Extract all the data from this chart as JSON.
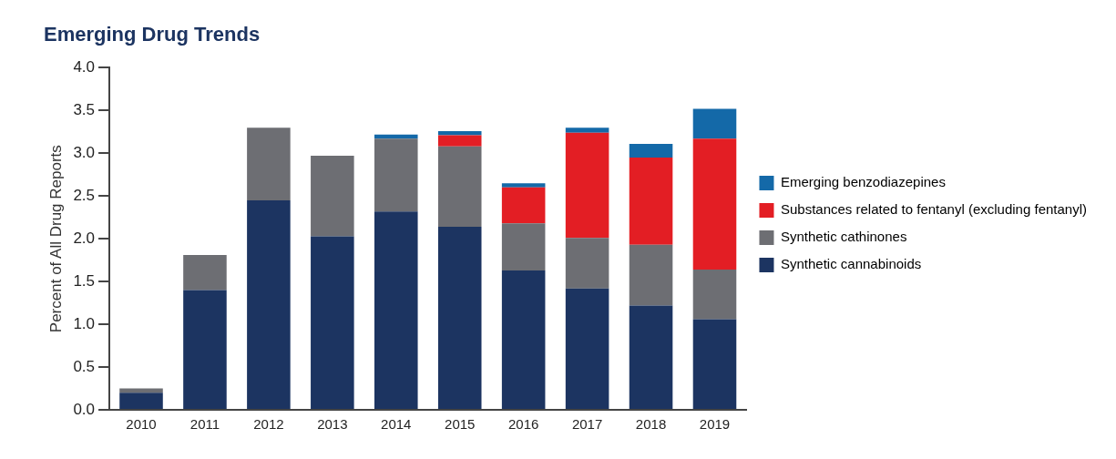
{
  "chart_data": {
    "type": "bar",
    "title": "Emerging Drug Trends",
    "ylabel": "Percent of All Drug Reports",
    "categories": [
      "2010",
      "2011",
      "2012",
      "2013",
      "2014",
      "2015",
      "2016",
      "2017",
      "2018",
      "2019"
    ],
    "stacked": true,
    "ylim": [
      0,
      4
    ],
    "yticks": [
      {
        "value": 0,
        "label": "0.0"
      },
      {
        "value": 0.5,
        "label": "0.5"
      },
      {
        "value": 1,
        "label": "1.0"
      },
      {
        "value": 1.5,
        "label": "1.5"
      },
      {
        "value": 2,
        "label": "2.0"
      },
      {
        "value": 2.5,
        "label": "2.5"
      },
      {
        "value": 3,
        "label": "3.0"
      },
      {
        "value": 3.5,
        "label": "3.5"
      },
      {
        "value": 4,
        "label": "4.0"
      }
    ],
    "grid": false,
    "legend": "right",
    "series": [
      {
        "name": "Synthetic cannabinoids",
        "color": "#1c3461",
        "values": [
          0.2,
          1.4,
          2.45,
          2.03,
          2.32,
          2.14,
          1.63,
          1.42,
          1.22,
          1.06
        ]
      },
      {
        "name": "Synthetic cathinones",
        "color": "#6d6e73",
        "values": [
          0.05,
          0.41,
          0.85,
          0.94,
          0.85,
          0.94,
          0.55,
          0.59,
          0.71,
          0.58
        ]
      },
      {
        "name": "Substances related to fentanyl (excluding fentanyl)",
        "color": "#e31e24",
        "values": [
          null,
          null,
          null,
          null,
          null,
          0.13,
          0.42,
          1.23,
          1.02,
          1.53
        ]
      },
      {
        "name": "Emerging benzodiazepines",
        "color": "#1469a8",
        "values": [
          null,
          null,
          null,
          null,
          0.05,
          0.05,
          0.05,
          0.06,
          0.16,
          0.35
        ]
      }
    ]
  }
}
